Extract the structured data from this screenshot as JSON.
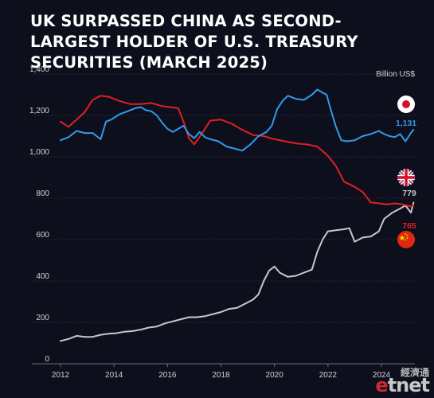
{
  "title": "UK SURPASSED CHINA AS SECOND-LARGEST HOLDER OF U.S. TREASURY SECURITIES (MARCH 2025)",
  "chart_data": {
    "type": "line",
    "title": "UK SURPASSED CHINA AS SECOND-LARGEST HOLDER OF U.S. TREASURY SECURITIES (MARCH 2025)",
    "unit_label": "Billion US$",
    "xlim": [
      2012,
      2025.25
    ],
    "ylim": [
      0,
      1400
    ],
    "x_ticks": [
      "2012",
      "2014",
      "2016",
      "2018",
      "2020",
      "2022",
      "2024"
    ],
    "y_ticks": [
      "0",
      "200",
      "400",
      "600",
      "800",
      "1,000",
      "1,200",
      "1,400"
    ],
    "grid": "horizontal",
    "legend": "flag icons at right end of lines",
    "colors": {
      "japan": "#2e9bea",
      "china": "#e02020",
      "uk": "#c8c8c8"
    },
    "series": [
      {
        "key": "japan",
        "icon": "japan-flag-icon",
        "end_label": "1,131",
        "points": [
          [
            2012.0,
            1080
          ],
          [
            2012.3,
            1095
          ],
          [
            2012.6,
            1125
          ],
          [
            2012.9,
            1115
          ],
          [
            2013.2,
            1115
          ],
          [
            2013.5,
            1085
          ],
          [
            2013.7,
            1170
          ],
          [
            2013.9,
            1180
          ],
          [
            2014.2,
            1205
          ],
          [
            2014.5,
            1220
          ],
          [
            2014.8,
            1235
          ],
          [
            2015.0,
            1240
          ],
          [
            2015.2,
            1225
          ],
          [
            2015.4,
            1220
          ],
          [
            2015.6,
            1200
          ],
          [
            2015.8,
            1165
          ],
          [
            2016.0,
            1135
          ],
          [
            2016.2,
            1120
          ],
          [
            2016.4,
            1135
          ],
          [
            2016.6,
            1150
          ],
          [
            2016.8,
            1110
          ],
          [
            2017.0,
            1090
          ],
          [
            2017.2,
            1120
          ],
          [
            2017.4,
            1095
          ],
          [
            2017.6,
            1085
          ],
          [
            2017.9,
            1075
          ],
          [
            2018.2,
            1050
          ],
          [
            2018.5,
            1040
          ],
          [
            2018.8,
            1030
          ],
          [
            2019.1,
            1060
          ],
          [
            2019.4,
            1100
          ],
          [
            2019.7,
            1120
          ],
          [
            2019.9,
            1150
          ],
          [
            2020.1,
            1230
          ],
          [
            2020.3,
            1270
          ],
          [
            2020.5,
            1295
          ],
          [
            2020.8,
            1280
          ],
          [
            2021.1,
            1275
          ],
          [
            2021.4,
            1300
          ],
          [
            2021.6,
            1325
          ],
          [
            2021.8,
            1310
          ],
          [
            2021.95,
            1300
          ],
          [
            2022.1,
            1230
          ],
          [
            2022.3,
            1145
          ],
          [
            2022.5,
            1080
          ],
          [
            2022.7,
            1075
          ],
          [
            2023.0,
            1080
          ],
          [
            2023.3,
            1100
          ],
          [
            2023.6,
            1110
          ],
          [
            2023.9,
            1125
          ],
          [
            2024.1,
            1110
          ],
          [
            2024.3,
            1100
          ],
          [
            2024.5,
            1095
          ],
          [
            2024.7,
            1110
          ],
          [
            2024.9,
            1075
          ],
          [
            2025.1,
            1115
          ],
          [
            2025.2,
            1131
          ]
        ]
      },
      {
        "key": "china",
        "icon": "china-flag-icon",
        "end_label": "765",
        "points": [
          [
            2012.0,
            1170
          ],
          [
            2012.3,
            1145
          ],
          [
            2012.6,
            1180
          ],
          [
            2012.9,
            1215
          ],
          [
            2013.2,
            1275
          ],
          [
            2013.5,
            1295
          ],
          [
            2013.8,
            1290
          ],
          [
            2014.2,
            1270
          ],
          [
            2014.6,
            1255
          ],
          [
            2015.0,
            1255
          ],
          [
            2015.4,
            1260
          ],
          [
            2015.8,
            1245
          ],
          [
            2016.1,
            1240
          ],
          [
            2016.4,
            1235
          ],
          [
            2016.6,
            1170
          ],
          [
            2016.8,
            1090
          ],
          [
            2017.0,
            1060
          ],
          [
            2017.3,
            1115
          ],
          [
            2017.6,
            1175
          ],
          [
            2018.0,
            1180
          ],
          [
            2018.4,
            1160
          ],
          [
            2018.8,
            1130
          ],
          [
            2019.2,
            1105
          ],
          [
            2019.6,
            1100
          ],
          [
            2020.0,
            1085
          ],
          [
            2020.4,
            1075
          ],
          [
            2020.8,
            1065
          ],
          [
            2021.2,
            1060
          ],
          [
            2021.6,
            1050
          ],
          [
            2022.0,
            1005
          ],
          [
            2022.3,
            955
          ],
          [
            2022.6,
            880
          ],
          [
            2023.0,
            855
          ],
          [
            2023.3,
            830
          ],
          [
            2023.6,
            780
          ],
          [
            2023.9,
            775
          ],
          [
            2024.2,
            770
          ],
          [
            2024.5,
            775
          ],
          [
            2024.8,
            770
          ],
          [
            2025.1,
            760
          ],
          [
            2025.2,
            765
          ]
        ]
      },
      {
        "key": "uk",
        "icon": "uk-flag-icon",
        "end_label": "779",
        "points": [
          [
            2012.0,
            110
          ],
          [
            2012.3,
            120
          ],
          [
            2012.6,
            135
          ],
          [
            2012.9,
            130
          ],
          [
            2013.2,
            130
          ],
          [
            2013.5,
            140
          ],
          [
            2013.8,
            145
          ],
          [
            2014.1,
            148
          ],
          [
            2014.4,
            155
          ],
          [
            2014.7,
            158
          ],
          [
            2015.0,
            165
          ],
          [
            2015.3,
            175
          ],
          [
            2015.6,
            180
          ],
          [
            2015.9,
            195
          ],
          [
            2016.2,
            205
          ],
          [
            2016.5,
            215
          ],
          [
            2016.8,
            225
          ],
          [
            2017.1,
            225
          ],
          [
            2017.4,
            230
          ],
          [
            2017.7,
            240
          ],
          [
            2018.0,
            250
          ],
          [
            2018.3,
            265
          ],
          [
            2018.6,
            270
          ],
          [
            2018.9,
            290
          ],
          [
            2019.2,
            310
          ],
          [
            2019.4,
            335
          ],
          [
            2019.6,
            400
          ],
          [
            2019.8,
            450
          ],
          [
            2020.0,
            470
          ],
          [
            2020.2,
            440
          ],
          [
            2020.5,
            420
          ],
          [
            2020.8,
            425
          ],
          [
            2021.1,
            440
          ],
          [
            2021.4,
            455
          ],
          [
            2021.6,
            540
          ],
          [
            2021.8,
            600
          ],
          [
            2022.0,
            640
          ],
          [
            2022.3,
            645
          ],
          [
            2022.6,
            650
          ],
          [
            2022.8,
            655
          ],
          [
            2023.0,
            590
          ],
          [
            2023.3,
            610
          ],
          [
            2023.6,
            615
          ],
          [
            2023.9,
            640
          ],
          [
            2024.1,
            700
          ],
          [
            2024.4,
            730
          ],
          [
            2024.7,
            750
          ],
          [
            2024.9,
            765
          ],
          [
            2025.1,
            730
          ],
          [
            2025.2,
            779
          ]
        ]
      }
    ]
  },
  "watermark": {
    "cn": "經濟通",
    "en_e": "e",
    "en_rest": "tnet"
  }
}
